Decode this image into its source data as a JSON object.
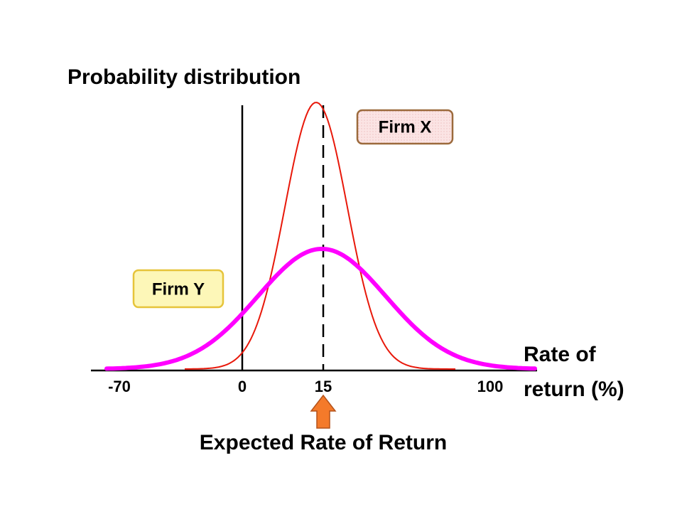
{
  "title": "Probability distribution",
  "x_axis_label": {
    "line1": "Rate of",
    "line2": "return (%)"
  },
  "x_tick_labels": [
    "-70",
    "0",
    "15",
    "100"
  ],
  "curve_labels": {
    "firm_x": "Firm X",
    "firm_y": "Firm Y"
  },
  "annotation": "Expected Rate of Return"
}
